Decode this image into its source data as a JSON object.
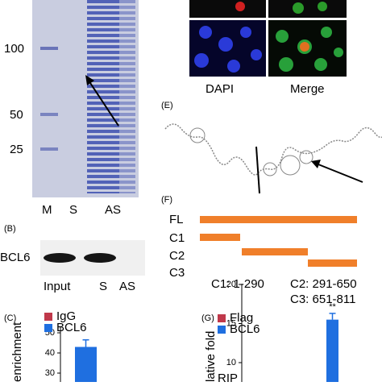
{
  "gel": {
    "markers": [
      "100",
      "50",
      "25"
    ],
    "lanes": [
      "M",
      "S",
      "AS"
    ]
  },
  "blot": {
    "panel": "(B)",
    "protein": "BCL6",
    "lanes": [
      "Input",
      "S",
      "AS"
    ]
  },
  "panel_c": {
    "panel": "(C)",
    "ylabel": "enrichment",
    "legend": [
      {
        "name": "IgG",
        "color": "#c0394b"
      },
      {
        "name": "BCL6",
        "color": "#1f6fe0"
      }
    ],
    "ylim": [
      30,
      50
    ],
    "yticks": [
      50,
      40,
      30
    ],
    "values": [
      43
    ],
    "errors": [
      3.5
    ]
  },
  "images": {
    "labels": [
      "DAPI",
      "Merge"
    ]
  },
  "panel_e": {
    "panel": "(E)"
  },
  "panel_f": {
    "panel": "(F)",
    "constructs": [
      "FL",
      "C1",
      "C2",
      "C3"
    ],
    "ranges": [
      "C1: 1-290",
      "C2: 291-650",
      "C3: 651-811"
    ]
  },
  "panel_g": {
    "panel": "(G)",
    "ylabel": "lative fold",
    "legend": [
      {
        "name": "Flag",
        "color": "#c0394b"
      },
      {
        "name": "BCL6",
        "color": "#1f6fe0"
      }
    ],
    "ylim": [
      10,
      20
    ],
    "yticks": [
      20,
      15,
      10
    ],
    "values": [
      15.5
    ],
    "errors": [
      0.8
    ],
    "significance": "**",
    "footer": "RIP"
  }
}
